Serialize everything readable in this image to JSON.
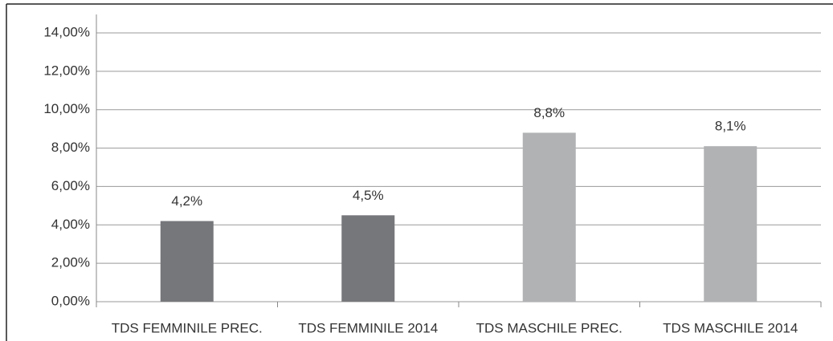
{
  "chart_data": {
    "type": "bar",
    "categories": [
      "TDS FEMMINILE PREC.",
      "TDS FEMMINILE 2014",
      "TDS MASCHILE PREC.",
      "TDS MASCHILE 2014"
    ],
    "values": [
      4.2,
      4.5,
      8.8,
      8.1
    ],
    "value_labels": [
      "4,2%",
      "4,5%",
      "8,8%",
      "8,1%"
    ],
    "colors": [
      "#76777b",
      "#76777b",
      "#b1b2b4",
      "#b1b2b4"
    ],
    "ylim": [
      0,
      14
    ],
    "yticks": [
      {
        "value": 0,
        "label": "0,00%"
      },
      {
        "value": 2,
        "label": "2,00%"
      },
      {
        "value": 4,
        "label": "4,00%"
      },
      {
        "value": 6,
        "label": "6,00%"
      },
      {
        "value": 8,
        "label": "8,00%"
      },
      {
        "value": 10,
        "label": "10,00%"
      },
      {
        "value": 12,
        "label": "12,00%"
      },
      {
        "value": 14,
        "label": "14,00%"
      }
    ],
    "grid": true
  }
}
